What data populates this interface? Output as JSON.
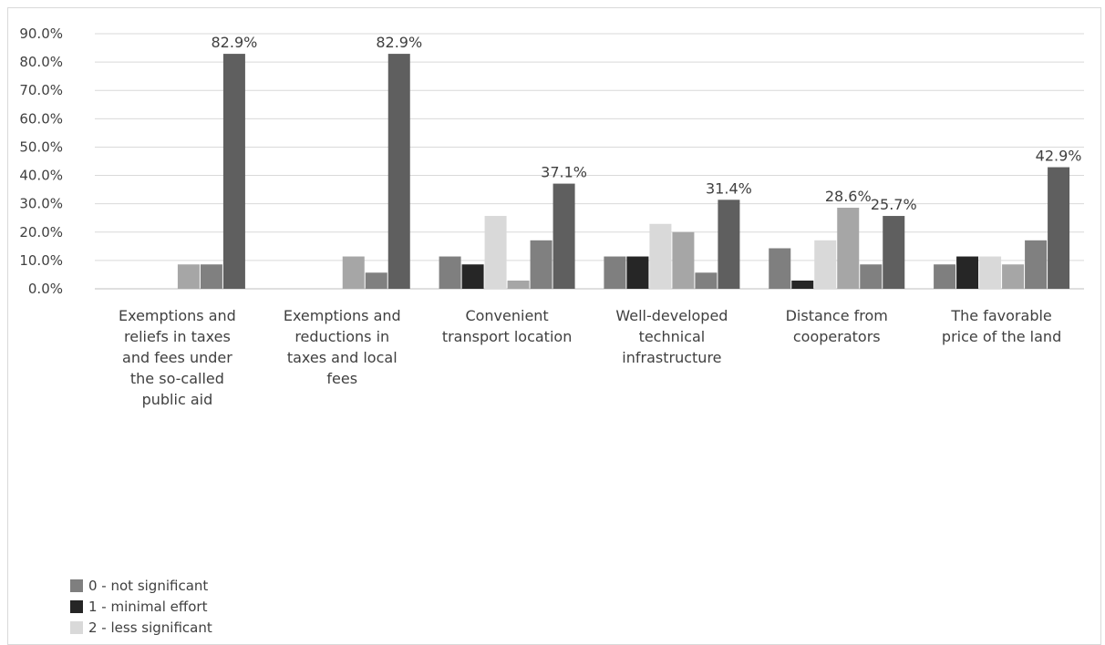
{
  "chart_data": {
    "type": "bar",
    "title": "",
    "xlabel": "",
    "ylabel": "",
    "ylim": [
      0,
      90
    ],
    "y_ticks": [
      "0.0%",
      "10.0%",
      "20.0%",
      "30.0%",
      "40.0%",
      "50.0%",
      "60.0%",
      "70.0%",
      "80.0%",
      "90.0%"
    ],
    "grid": true,
    "legend_position": "bottom-left",
    "categories": [
      "Exemptions and reliefs in taxes and fees under the so-called public aid",
      "Exemptions and reductions in taxes and local fees",
      "Convenient transport location",
      "Well-developed technical infrastructure",
      "Distance from cooperators",
      "The favorable price of the land"
    ],
    "category_lines": [
      [
        "Exemptions and",
        "reliefs in taxes",
        "and fees under",
        "the so-called",
        "public aid"
      ],
      [
        "Exemptions and",
        "reductions in",
        "taxes and local",
        "fees"
      ],
      [
        "Convenient",
        "transport location"
      ],
      [
        "Well-developed",
        "technical",
        "infrastructure"
      ],
      [
        "Distance from",
        "cooperators"
      ],
      [
        "The favorable",
        "price of the land"
      ]
    ],
    "series": [
      {
        "name": "0 - not significant",
        "color": "#7f7f7f",
        "values": [
          0,
          0,
          11.4,
          11.4,
          14.3,
          8.6
        ]
      },
      {
        "name": "1 - minimal effort",
        "color": "#262626",
        "values": [
          0,
          0,
          8.6,
          11.4,
          2.9,
          11.4
        ]
      },
      {
        "name": "2 - less significant",
        "color": "#d9d9d9",
        "values": [
          0,
          0,
          25.7,
          22.9,
          17.1,
          11.4
        ]
      },
      {
        "name": "",
        "color": "#a6a6a6",
        "values": [
          8.6,
          11.4,
          2.9,
          20.0,
          28.6,
          8.6
        ]
      },
      {
        "name": "",
        "color": "#808080",
        "values": [
          8.6,
          5.7,
          17.1,
          5.7,
          8.6,
          17.1
        ]
      },
      {
        "name": "",
        "color": "#5f5f5f",
        "values": [
          82.9,
          82.9,
          37.1,
          31.4,
          25.7,
          42.9
        ]
      }
    ],
    "data_labels": [
      {
        "category": 0,
        "series": 5,
        "text": "82.9%"
      },
      {
        "category": 1,
        "series": 5,
        "text": "82.9%"
      },
      {
        "category": 2,
        "series": 5,
        "text": "37.1%"
      },
      {
        "category": 3,
        "series": 5,
        "text": "31.4%"
      },
      {
        "category": 4,
        "series": 3,
        "text": "28.6%"
      },
      {
        "category": 4,
        "series": 5,
        "text": "25.7%"
      },
      {
        "category": 5,
        "series": 5,
        "text": "42.9%"
      }
    ]
  },
  "legend": {
    "items": [
      {
        "label": "0 - not significant",
        "color": "#7f7f7f"
      },
      {
        "label": "1 - minimal effort",
        "color": "#262626"
      },
      {
        "label": "2 - less significant",
        "color": "#d9d9d9"
      }
    ]
  }
}
